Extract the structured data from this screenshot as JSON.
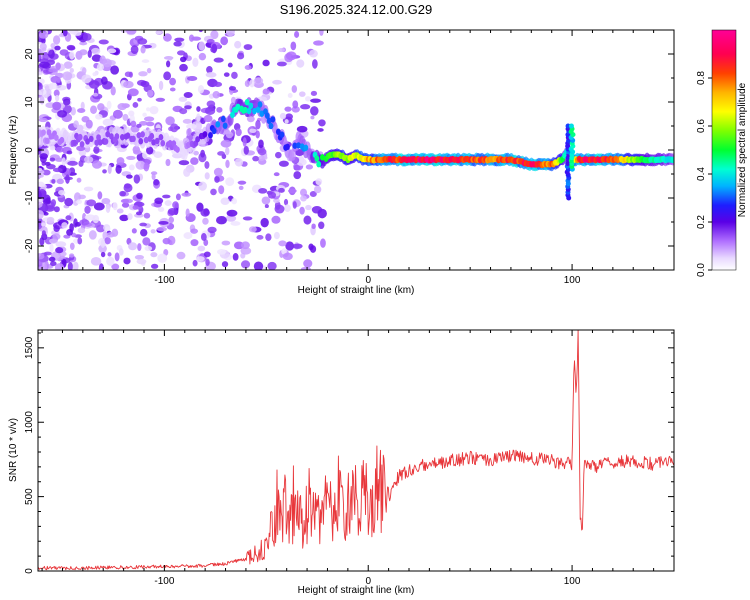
{
  "title": "S196.2025.324.12.00.G29",
  "chart_data": [
    {
      "type": "heatmap",
      "xlabel": "Height of straight line (km)",
      "ylabel": "Frequency (Hz)",
      "xlim": [
        -162,
        150
      ],
      "ylim": [
        -25,
        25
      ],
      "xticks": [
        -100,
        0,
        100
      ],
      "xtick_labels": [
        "-100",
        "0",
        "100"
      ],
      "yticks": [
        -20,
        -10,
        0,
        10,
        20
      ],
      "ytick_labels": [
        "-20",
        "-10",
        "0",
        "10",
        "20"
      ],
      "colorbar": {
        "label": "Normalized spectral amplitude",
        "range": [
          0.0,
          1.0
        ],
        "ticks": [
          0.0,
          0.2,
          0.4,
          0.6,
          0.8
        ],
        "tick_labels": [
          "0.0",
          "0.2",
          "0.4",
          "0.6",
          "0.8"
        ]
      },
      "ridge_x": [
        -162,
        -140,
        -120,
        -100,
        -90,
        -80,
        -74,
        -70,
        -66,
        -62,
        -58,
        -54,
        -50,
        -46,
        -42,
        -38,
        -34,
        -30,
        -26,
        -22,
        -18,
        -14,
        -10,
        -6,
        -2,
        0,
        10,
        20,
        30,
        40,
        50,
        60,
        70,
        80,
        85,
        90,
        95,
        98,
        100,
        104,
        110,
        120,
        130,
        140,
        150
      ],
      "ridge_freq": [
        3,
        2,
        3,
        2,
        0,
        3,
        5,
        6,
        8,
        9,
        9,
        9,
        7,
        5,
        2,
        -1,
        2,
        0,
        -2,
        -2,
        -1,
        -1,
        -2,
        -1,
        -2,
        -2,
        -2,
        -2,
        -2,
        -2,
        -2,
        -2,
        -2,
        -3,
        -3,
        -3,
        -2,
        0,
        -2,
        -2,
        -2,
        -2,
        -2,
        -2,
        -2
      ],
      "ridge_amplitude": [
        0.1,
        0.15,
        0.15,
        0.15,
        0.1,
        0.2,
        0.35,
        0.3,
        0.4,
        0.45,
        0.4,
        0.35,
        0.3,
        0.3,
        0.3,
        0.25,
        0.3,
        0.35,
        0.45,
        0.5,
        0.55,
        0.6,
        0.6,
        0.65,
        0.7,
        0.75,
        0.85,
        0.9,
        0.95,
        0.9,
        0.85,
        0.8,
        0.85,
        0.9,
        0.85,
        0.8,
        0.55,
        0.35,
        0.55,
        0.9,
        0.9,
        0.85,
        0.6,
        0.45,
        0.4
      ]
    },
    {
      "type": "line",
      "xlabel": "Height of straight line (km)",
      "ylabel": "SNR (10 * v/v)",
      "xlim": [
        -162,
        150
      ],
      "ylim": [
        0,
        1620
      ],
      "xticks": [
        -100,
        0,
        100
      ],
      "xtick_labels": [
        "-100",
        "0",
        "100"
      ],
      "yticks": [
        0,
        500,
        1000,
        1500
      ],
      "ytick_labels": [
        "0",
        "500",
        "1000",
        "1500"
      ],
      "color": "#e8373b",
      "series": [
        {
          "name": "SNR",
          "x": [
            -162,
            -140,
            -120,
            -100,
            -80,
            -70,
            -60,
            -55,
            -50,
            -47,
            -44,
            -41,
            -38,
            -35,
            -32,
            -29,
            -26,
            -23,
            -20,
            -17,
            -14,
            -11,
            -8,
            -5,
            -2,
            0,
            5,
            10,
            15,
            20,
            25,
            30,
            40,
            50,
            60,
            70,
            80,
            90,
            95,
            98,
            100,
            101,
            102,
            103,
            104,
            105,
            106,
            110,
            120,
            130,
            140,
            150
          ],
          "values": [
            20,
            20,
            25,
            30,
            35,
            50,
            80,
            120,
            180,
            300,
            380,
            420,
            350,
            400,
            300,
            450,
            420,
            350,
            520,
            300,
            560,
            340,
            600,
            380,
            550,
            420,
            600,
            500,
            640,
            680,
            700,
            720,
            740,
            760,
            750,
            770,
            760,
            740,
            720,
            740,
            700,
            1450,
            1150,
            1620,
            350,
            280,
            720,
            700,
            730,
            740,
            720,
            740
          ]
        }
      ]
    }
  ]
}
